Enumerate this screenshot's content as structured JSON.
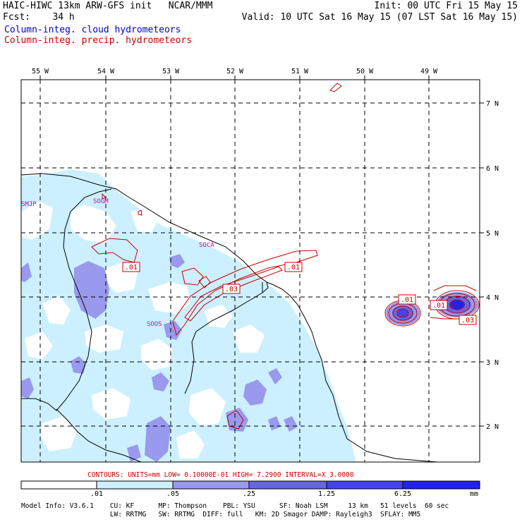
{
  "header": {
    "line1_left": "HAIC-HIWC 13km ARW-GFS init   NCAR/MMM",
    "line1_right": "Init: 00 UTC Fri 15 May 15",
    "line2_left": "Fcst:    34 h",
    "line2_right": "Valid: 10 UTC Sat 16 May 15 (07 LST Sat 16 May 15)",
    "legend_cloud": "Column-integ. cloud hydrometeors",
    "legend_precip": "Column-integ. precip. hydrometeors"
  },
  "colors": {
    "cloud_legend": "#0000cc",
    "precip_contour": "#cc0000",
    "station_label": "#cc00cc",
    "shade_1": "#ccf0ff",
    "shade_2": "#9999ee",
    "shade_3": "#6666dd",
    "shade_4": "#4444ee",
    "shade_5": "#2222ee"
  },
  "map": {
    "lon_labels": [
      "55 W",
      "54 W",
      "53 W",
      "52 W",
      "51 W",
      "50 W",
      "49 W"
    ],
    "lat_labels": [
      "7 N",
      "6 N",
      "5 N",
      "4 N",
      "3 N",
      "2 N"
    ],
    "stations": [
      "SMJP",
      "SOGM",
      "SOCA",
      "SOOS"
    ],
    "contour_labels": [
      ".01",
      ".03",
      ".01",
      ".01",
      ".01",
      ".03"
    ]
  },
  "contours_info": "CONTOURS:  UNITS=mm  LOW= 0.10000E-01  HIGH=  7.2900      INTERVAL=X  3.0000",
  "colorbar": {
    "levels": [
      ".01",
      ".05",
      ".25",
      "1.25",
      "6.25"
    ],
    "units": "mm"
  },
  "footer": {
    "line1": "Model Info: V3.6.1    CU: KF      MP: Thompson    PBL: YSU      SF: Noah LSM     13 km   51 levels  60 sec",
    "line2": "                      LW: RRTMG   SW: RRTMG  DIFF: full   KM: 2D Smagor DAMP: Rayleigh3  SFLAY: MM5"
  }
}
